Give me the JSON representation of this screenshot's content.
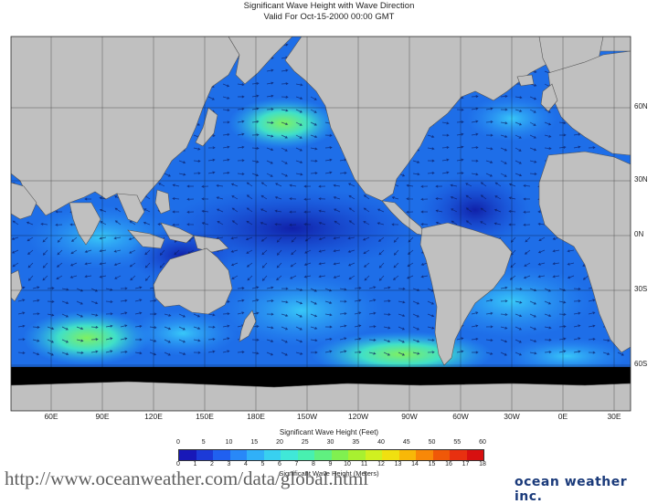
{
  "title": "Significant Wave Height with Wave Direction",
  "subtitle": "Valid For Oct-15-2000 00:00 GMT",
  "lat_labels": [
    "60N",
    "30N",
    "0N",
    "30S",
    "60S"
  ],
  "lon_labels": [
    "60E",
    "90E",
    "120E",
    "150E",
    "180E",
    "150W",
    "120W",
    "90W",
    "60W",
    "30W",
    "0E",
    "30E"
  ],
  "legend": {
    "title": "Significant Wave Height (Feet)",
    "feet_ticks": [
      "0",
      "5",
      "10",
      "15",
      "20",
      "25",
      "30",
      "35",
      "40",
      "45",
      "50",
      "55",
      "60"
    ],
    "meter_ticks": [
      "0",
      "1",
      "2",
      "3",
      "4",
      "5",
      "6",
      "7",
      "8",
      "9",
      "10",
      "11",
      "12",
      "13",
      "14",
      "15",
      "16",
      "17",
      "18"
    ],
    "units_label": "Significant Wave Height (Meters)",
    "colors": [
      "#1818b8",
      "#1c3ad8",
      "#2060f0",
      "#2888f8",
      "#30b0f8",
      "#38d0f0",
      "#40e8d8",
      "#48f0b0",
      "#60f080",
      "#80f050",
      "#a8f030",
      "#d0f020",
      "#f0e010",
      "#f8b808",
      "#f88808",
      "#f05808",
      "#e83010",
      "#d81010"
    ]
  },
  "url_text": "http://www.oceanweather.com/data/global.html",
  "brand": "ocean weather inc.",
  "colors": {
    "ocean": "#1e6ee8",
    "land": "#c0c0c0",
    "ice": "#000000"
  }
}
